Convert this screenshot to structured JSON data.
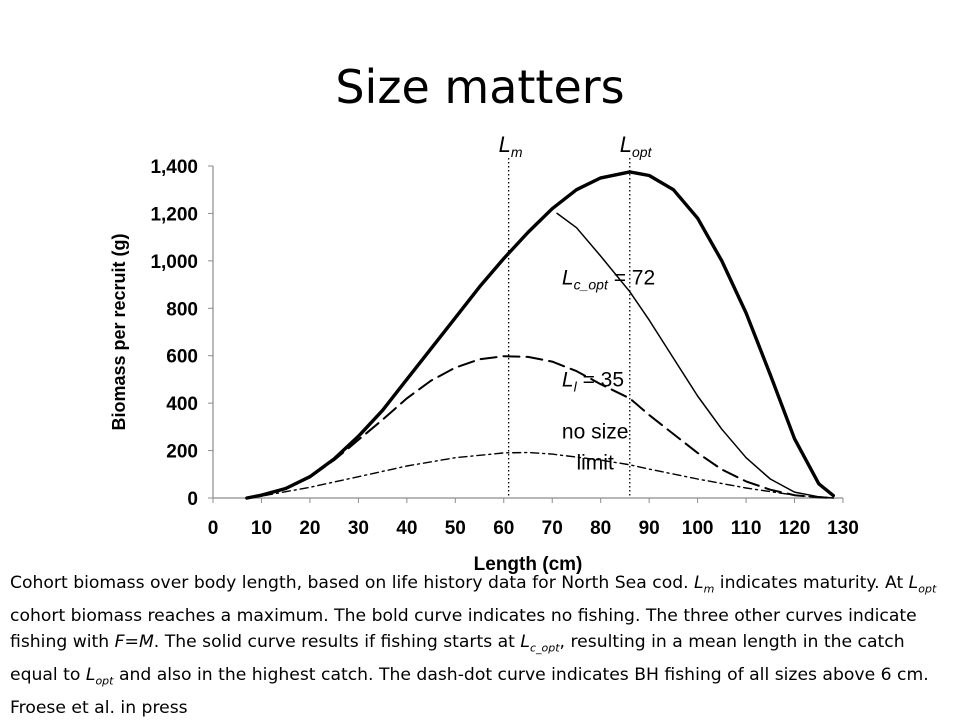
{
  "slide": {
    "title": "Size matters"
  },
  "caption": {
    "p1": "Cohort biomass over body length, based on life history data for North Sea cod. ",
    "lm_main": "L",
    "lm_sub": "m",
    "p2": " indicates maturity. At ",
    "lopt_main": "L",
    "lopt_sub": "opt",
    "p3": " cohort biomass reaches a maximum. The bold curve indicates no fishing. The three other curves indicate fishing with ",
    "fm": "F=M",
    "p4": ". The solid curve results if fishing starts at ",
    "lcopt_main": "L",
    "lcopt_sub": "c_opt",
    "p5": ", resulting in a mean length in the catch equal to ",
    "lopt2_main": "L",
    "lopt2_sub": "opt",
    "p6": " and also in the highest catch. The dash-dot curve indicates BH fishing of all sizes above 6 cm.  Froese et al. in press"
  },
  "chart_data": {
    "type": "line",
    "xlabel": "Length (cm)",
    "ylabel": "Biomass per recruit (g)",
    "xlim": [
      0,
      130
    ],
    "ylim": [
      0,
      1400
    ],
    "xticks": [
      0,
      10,
      20,
      30,
      40,
      50,
      60,
      70,
      80,
      90,
      100,
      110,
      120,
      130
    ],
    "yticks": [
      0,
      200,
      400,
      600,
      800,
      1000,
      1200,
      1400
    ],
    "ytick_labels": [
      "0",
      "200",
      "400",
      "600",
      "800",
      "1,000",
      "1,200",
      "1,400"
    ],
    "grid": false,
    "legend": "none",
    "series": [
      {
        "style": "bold-solid",
        "x": [
          7,
          10,
          15,
          20,
          25,
          30,
          35,
          40,
          45,
          50,
          55,
          60,
          65,
          70,
          75,
          80,
          86,
          90,
          95,
          100,
          105,
          110,
          115,
          120,
          125,
          128
        ],
        "y": [
          0,
          12,
          40,
          90,
          165,
          260,
          370,
          500,
          630,
          760,
          890,
          1010,
          1120,
          1220,
          1300,
          1350,
          1375,
          1360,
          1300,
          1180,
          1000,
          780,
          520,
          250,
          60,
          10
        ]
      },
      {
        "style": "thin-solid",
        "x": [
          71,
          75,
          80,
          86,
          90,
          95,
          100,
          105,
          110,
          115,
          120,
          125,
          128
        ],
        "y": [
          1200,
          1140,
          1020,
          870,
          750,
          590,
          430,
          290,
          170,
          80,
          25,
          5,
          0
        ]
      },
      {
        "style": "dashed",
        "x": [
          7,
          10,
          15,
          20,
          25,
          30,
          35,
          40,
          45,
          50,
          55,
          60,
          65,
          70,
          75,
          80,
          86,
          90,
          95,
          100,
          105,
          110,
          115,
          120,
          125,
          128
        ],
        "y": [
          0,
          12,
          40,
          88,
          160,
          245,
          330,
          420,
          495,
          550,
          585,
          598,
          595,
          575,
          535,
          480,
          420,
          350,
          270,
          190,
          120,
          70,
          35,
          12,
          3,
          0
        ]
      },
      {
        "style": "dash-dot",
        "x": [
          7,
          10,
          20,
          30,
          40,
          50,
          60,
          65,
          70,
          80,
          86,
          90,
          100,
          110,
          120,
          125,
          128
        ],
        "y": [
          0,
          8,
          45,
          90,
          135,
          170,
          190,
          192,
          185,
          160,
          140,
          122,
          80,
          42,
          12,
          3,
          0
        ]
      }
    ],
    "vlines": [
      {
        "x": 61,
        "label_main": "L",
        "label_sub": "m"
      },
      {
        "x": 86,
        "label_main": "L",
        "label_sub": "opt"
      }
    ],
    "annotations": [
      {
        "main": "L",
        "sub": "c_opt",
        "rest": " = 72",
        "x": 72,
        "y": 900
      },
      {
        "main": "L",
        "sub": "l",
        "rest": " = 35",
        "x": 72,
        "y": 470
      },
      {
        "text": "no size",
        "x": 72,
        "y": 250
      },
      {
        "text": "limit",
        "x": 75,
        "y": 120
      }
    ]
  }
}
